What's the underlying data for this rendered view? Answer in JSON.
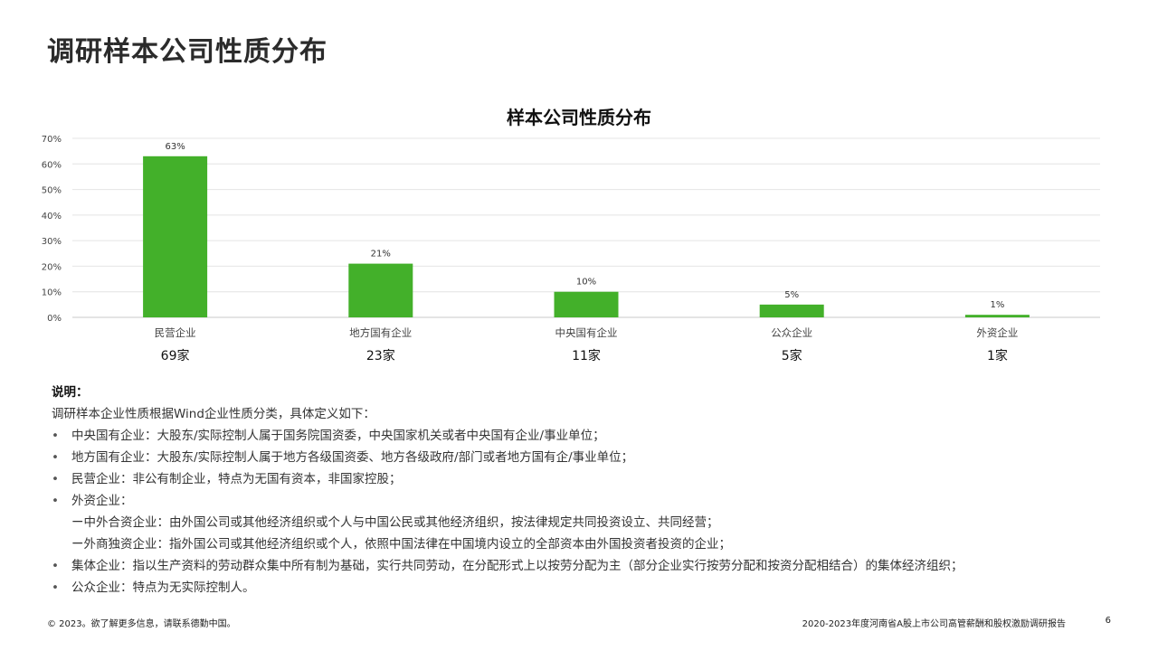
{
  "page": {
    "title": "调研样本公司性质分布"
  },
  "chart_data": {
    "type": "bar",
    "title": "样本公司性质分布",
    "categories": [
      "民营企业",
      "地方国有企业",
      "中央国有企业",
      "公众企业",
      "外资企业"
    ],
    "values": [
      63,
      21,
      10,
      5,
      1
    ],
    "value_labels": [
      "63%",
      "21%",
      "10%",
      "5%",
      "1%"
    ],
    "counts": [
      "69家",
      "23家",
      "11家",
      "5家",
      "1家"
    ],
    "ylim": [
      0,
      70
    ],
    "yticks": [
      "0%",
      "10%",
      "20%",
      "30%",
      "40%",
      "50%",
      "60%",
      "70%"
    ],
    "grid": true,
    "bar_color": "#43b02a"
  },
  "notes": {
    "heading": "说明：",
    "intro": "调研样本企业性质根据Wind企业性质分类，具体定义如下：",
    "bullet": "•",
    "items": [
      "中央国有企业：大股东/实际控制人属于国务院国资委，中央国家机关或者中央国有企业/事业单位；",
      "地方国有企业：大股东/实际控制人属于地方各级国资委、地方各级政府/部门或者地方国有企/事业单位；",
      "民营企业：非公有制企业，特点为无国有资本，非国家控股；",
      "外资企业："
    ],
    "sub_items": [
      "ー中外合资企业：由外国公司或其他经济组织或个人与中国公民或其他经济组织，按法律规定共同投资设立、共同经营；",
      "ー外商独资企业：指外国公司或其他经济组织或个人，依照中国法律在中国境内设立的全部资本由外国投资者投资的企业；"
    ],
    "items_after": [
      "集体企业：指以生产资料的劳动群众集中所有制为基础，实行共同劳动，在分配形式上以按劳分配为主（部分企业实行按劳分配和按资分配相结合）的集体经济组织；",
      "公众企业：特点为无实际控制人。"
    ]
  },
  "footer": {
    "left": "© 2023。欲了解更多信息，请联系德勤中国。",
    "right": "2020-2023年度河南省A股上市公司高管薪酬和股权激励调研报告",
    "page_number": "6"
  }
}
